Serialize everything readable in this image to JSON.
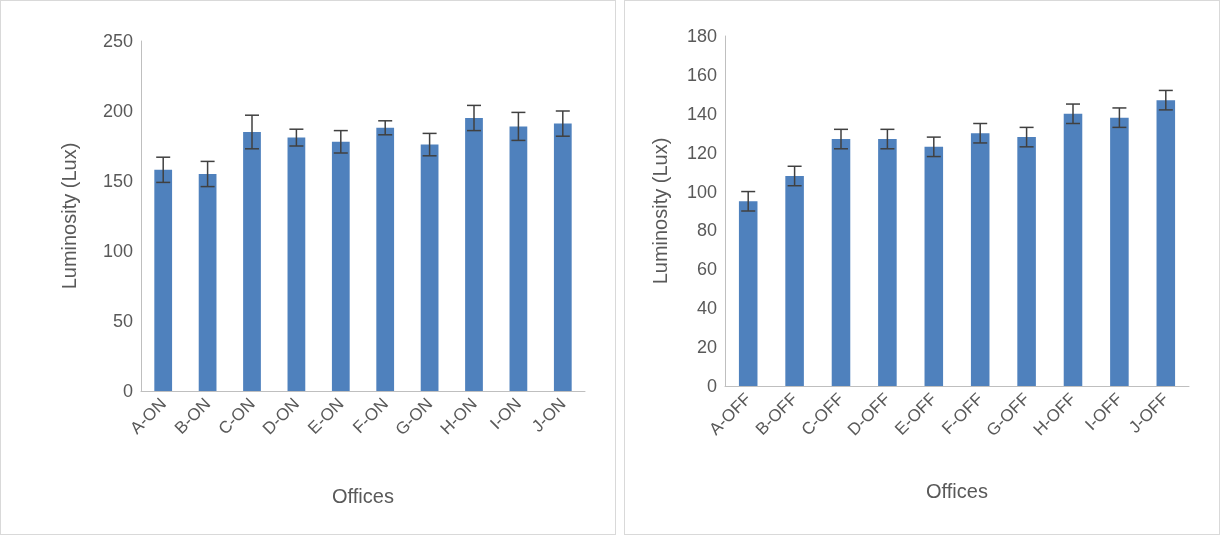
{
  "chart_data": [
    {
      "type": "bar",
      "xlabel": "Offices",
      "ylabel": "Luminosity (Lux)",
      "categories": [
        "A-ON",
        "B-ON",
        "C-ON",
        "D-ON",
        "E-ON",
        "F-ON",
        "G-ON",
        "H-ON",
        "I-ON",
        "J-ON"
      ],
      "values": [
        158,
        155,
        185,
        181,
        178,
        188,
        176,
        195,
        189,
        191
      ],
      "errors": [
        9,
        9,
        12,
        6,
        8,
        5,
        8,
        9,
        10,
        9
      ],
      "color": "#4f81bd",
      "ylim": [
        0,
        250
      ],
      "yticks": [
        0,
        50,
        100,
        150,
        200,
        250
      ]
    },
    {
      "type": "bar",
      "xlabel": "Offices",
      "ylabel": "Luminosity (Lux)",
      "categories": [
        "A-OFF",
        "B-OFF",
        "C-OFF",
        "D-OFF",
        "E-OFF",
        "F-OFF",
        "G-OFF",
        "H-OFF",
        "I-OFF",
        "J-OFF"
      ],
      "values": [
        95,
        108,
        127,
        127,
        123,
        130,
        128,
        140,
        138,
        147
      ],
      "errors": [
        5,
        5,
        5,
        5,
        5,
        5,
        5,
        5,
        5,
        5
      ],
      "color": "#4f81bd",
      "ylim": [
        0,
        180
      ],
      "yticks": [
        0,
        20,
        40,
        60,
        80,
        100,
        120,
        140,
        160,
        180
      ]
    }
  ]
}
